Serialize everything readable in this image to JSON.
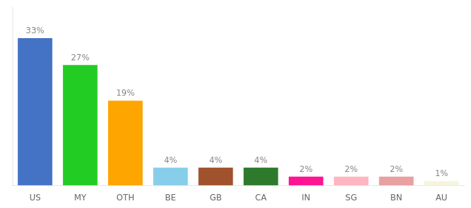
{
  "chart_data": {
    "type": "bar",
    "categories": [
      "US",
      "MY",
      "OTH",
      "BE",
      "GB",
      "CA",
      "IN",
      "SG",
      "BN",
      "AU"
    ],
    "values": [
      33,
      27,
      19,
      4,
      4,
      4,
      2,
      2,
      2,
      1
    ],
    "value_labels": [
      "33%",
      "27%",
      "19%",
      "4%",
      "4%",
      "4%",
      "2%",
      "2%",
      "2%",
      "1%"
    ],
    "colors": [
      "#4472C4",
      "#22CC22",
      "#FFA500",
      "#87CEEB",
      "#A0522D",
      "#2D7A2D",
      "#FF1493",
      "#FFB6C1",
      "#E8A0A0",
      "#F5F5DC"
    ],
    "ylim": [
      0,
      40
    ],
    "grid": false,
    "data_labels": true,
    "tick_labels": "x"
  }
}
